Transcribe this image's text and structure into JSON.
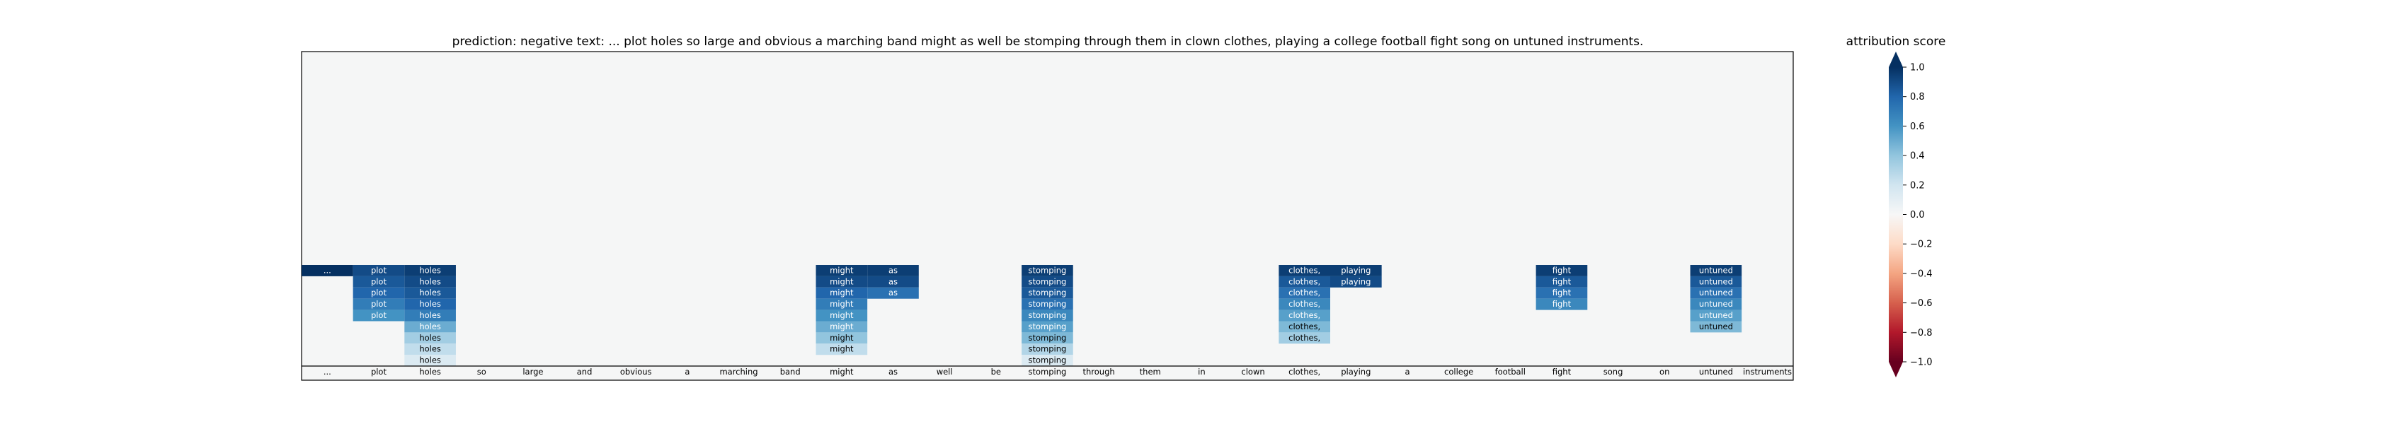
{
  "chart_data": {
    "type": "heatmap",
    "title": "prediction:  negative     text:  ... plot holes so large and obvious a marching band might as well be stomping through them in clown clothes, playing a college football fight song on untuned instruments.",
    "tokens": [
      "...",
      "plot",
      "holes",
      "so",
      "large",
      "and",
      "obvious",
      "a",
      "marching",
      "band",
      "might",
      "as",
      "well",
      "be",
      "stomping",
      "through",
      "them",
      "in",
      "clown",
      "clothes,",
      "playing",
      "a",
      "college",
      "football",
      "fight",
      "song",
      "on",
      "untuned",
      "instruments"
    ],
    "layers": 9,
    "scores": [
      [
        1.0,
        null,
        null,
        null,
        null,
        null,
        null,
        null,
        null
      ],
      [
        0.9,
        0.85,
        0.8,
        0.7,
        0.6,
        null,
        null,
        null,
        null
      ],
      [
        0.95,
        0.9,
        0.85,
        0.8,
        0.7,
        0.5,
        0.35,
        0.25,
        0.15
      ],
      [
        null,
        null,
        null,
        null,
        null,
        null,
        null,
        null,
        null
      ],
      [
        null,
        null,
        null,
        null,
        null,
        null,
        null,
        null,
        null
      ],
      [
        null,
        null,
        null,
        null,
        null,
        null,
        null,
        null,
        null
      ],
      [
        null,
        null,
        null,
        null,
        null,
        null,
        null,
        null,
        null
      ],
      [
        null,
        null,
        null,
        null,
        null,
        null,
        null,
        null,
        null
      ],
      [
        null,
        null,
        null,
        null,
        null,
        null,
        null,
        null,
        null
      ],
      [
        null,
        null,
        null,
        null,
        null,
        null,
        null,
        null,
        null
      ],
      [
        0.95,
        0.9,
        0.8,
        0.7,
        0.6,
        0.5,
        0.4,
        0.25,
        null
      ],
      [
        0.95,
        0.9,
        0.75,
        null,
        null,
        null,
        null,
        null,
        null
      ],
      [
        null,
        null,
        null,
        null,
        null,
        null,
        null,
        null,
        null
      ],
      [
        null,
        null,
        null,
        null,
        null,
        null,
        null,
        null,
        null
      ],
      [
        0.95,
        0.9,
        0.85,
        0.75,
        0.65,
        0.55,
        0.45,
        0.3,
        0.15
      ],
      [
        null,
        null,
        null,
        null,
        null,
        null,
        null,
        null,
        null
      ],
      [
        null,
        null,
        null,
        null,
        null,
        null,
        null,
        null,
        null
      ],
      [
        null,
        null,
        null,
        null,
        null,
        null,
        null,
        null,
        null
      ],
      [
        null,
        null,
        null,
        null,
        null,
        null,
        null,
        null,
        null
      ],
      [
        0.95,
        0.85,
        0.75,
        0.65,
        0.55,
        0.45,
        0.35,
        null,
        null
      ],
      [
        0.95,
        0.9,
        null,
        null,
        null,
        null,
        null,
        null,
        null
      ],
      [
        null,
        null,
        null,
        null,
        null,
        null,
        null,
        null,
        null
      ],
      [
        null,
        null,
        null,
        null,
        null,
        null,
        null,
        null,
        null
      ],
      [
        null,
        null,
        null,
        null,
        null,
        null,
        null,
        null,
        null
      ],
      [
        0.95,
        0.85,
        0.75,
        0.65,
        null,
        null,
        null,
        null,
        null
      ],
      [
        null,
        null,
        null,
        null,
        null,
        null,
        null,
        null,
        null
      ],
      [
        null,
        null,
        null,
        null,
        null,
        null,
        null,
        null,
        null
      ],
      [
        0.95,
        0.85,
        0.75,
        0.65,
        0.55,
        0.45,
        null,
        null,
        null
      ],
      [
        null,
        null,
        null,
        null,
        null,
        null,
        null,
        null,
        null
      ]
    ],
    "colorbar": {
      "label": "attribution score",
      "vmin": -1.0,
      "vmax": 1.0,
      "ticks": [
        "1.0",
        "0.8",
        "0.6",
        "0.4",
        "0.2",
        "0.0",
        "−0.2",
        "−0.4",
        "−0.6",
        "−0.8",
        "−1.0"
      ],
      "tick_values": [
        1.0,
        0.8,
        0.6,
        0.4,
        0.2,
        0.0,
        -0.2,
        -0.4,
        -0.6,
        -0.8,
        -1.0
      ],
      "colormap": "RdBu",
      "stops": [
        "#67001f",
        "#b2182b",
        "#d6604d",
        "#f4a582",
        "#fddbc7",
        "#f7f7f7",
        "#d1e5f0",
        "#92c5de",
        "#4393c3",
        "#2166ac",
        "#053061"
      ]
    },
    "background_color": "#f5f6f6",
    "grid": false
  }
}
